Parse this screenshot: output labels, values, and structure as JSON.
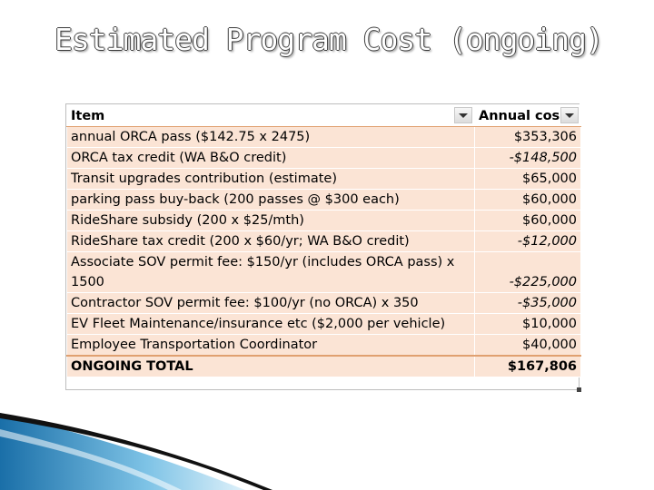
{
  "title": "Estimated Program Cost (ongoing)",
  "table": {
    "headers": [
      "Item",
      "Annual cos"
    ],
    "rows": [
      {
        "item": "annual ORCA pass ($142.75 x 2475)",
        "amount": "$353,306",
        "negative": false
      },
      {
        "item": "ORCA tax credit (WA B&O credit)",
        "amount": "-$148,500",
        "negative": true
      },
      {
        "item": "Transit upgrades contribution (estimate)",
        "amount": "$65,000",
        "negative": false
      },
      {
        "item": "parking pass buy-back (200 passes @ $300 each)",
        "amount": "$60,000",
        "negative": false
      },
      {
        "item": "RideShare subsidy (200 x $25/mth)",
        "amount": "$60,000",
        "negative": false
      },
      {
        "item": "RideShare tax credit (200 x $60/yr; WA B&O credit)",
        "amount": "-$12,000",
        "negative": true
      },
      {
        "item": "Associate SOV permit fee: $150/yr (includes ORCA pass) x 1500",
        "amount": "-$225,000",
        "negative": true
      },
      {
        "item": "Contractor SOV permit fee: $100/yr (no ORCA) x 350",
        "amount": "-$35,000",
        "negative": true
      },
      {
        "item": "EV Fleet Maintenance/insurance etc ($2,000 per vehicle)",
        "amount": "$10,000",
        "negative": false
      },
      {
        "item": "Employee Transportation Coordinator",
        "amount": "$40,000",
        "negative": false
      }
    ],
    "total": {
      "item": "ONGOING TOTAL",
      "amount": "$167,806"
    }
  }
}
